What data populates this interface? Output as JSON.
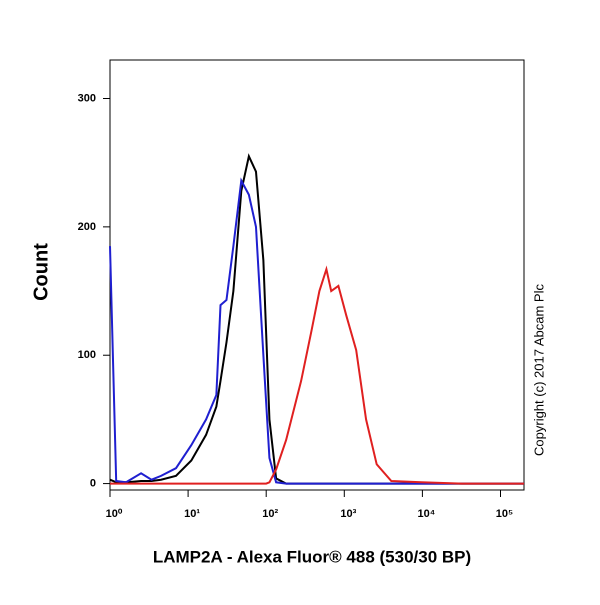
{
  "chart_data": {
    "type": "line",
    "xlabel": "LAMP2A - Alexa Fluor® 488 (530/30 BP)",
    "ylabel": "Count",
    "annotation": "Copyright (c) 2017 Abcam Plc",
    "xscale": "log",
    "xlim": [
      1,
      200000
    ],
    "ylim": [
      -5,
      330
    ],
    "xticks": [
      {
        "value": 1,
        "label": "10⁰"
      },
      {
        "value": 10,
        "label": "10¹"
      },
      {
        "value": 100,
        "label": "10²"
      },
      {
        "value": 1000,
        "label": "10³"
      },
      {
        "value": 10000,
        "label": "10⁴"
      },
      {
        "value": 100000,
        "label": "10⁵"
      }
    ],
    "yticks": [
      0,
      100,
      200,
      300
    ],
    "series": [
      {
        "color": "#000000",
        "x": [
          1,
          1.2,
          1.6,
          2.5,
          3.4,
          4.5,
          7,
          11,
          17,
          23,
          26,
          31,
          38,
          48,
          60,
          74,
          92,
          110,
          134,
          180,
          1000,
          200000
        ],
        "values": [
          3,
          1,
          1,
          2,
          2,
          3,
          6,
          18,
          38,
          60,
          80,
          110,
          150,
          228,
          255,
          243,
          174,
          50,
          4,
          0,
          0,
          0
        ]
      },
      {
        "color": "#1f1fd0",
        "x": [
          1,
          1.2,
          1.6,
          2.5,
          3.4,
          4.5,
          7,
          11,
          17,
          23,
          26,
          31,
          38,
          48,
          60,
          74,
          92,
          110,
          134,
          180,
          280,
          1000,
          200000
        ],
        "values": [
          185,
          2,
          1,
          8,
          3,
          6,
          12,
          30,
          50,
          69,
          139,
          143,
          185,
          236,
          225,
          200,
          100,
          20,
          1,
          0,
          0,
          0,
          0
        ]
      },
      {
        "color": "#e02020",
        "x": [
          1,
          100,
          110,
          134,
          180,
          280,
          380,
          480,
          590,
          680,
          840,
          1060,
          1420,
          1900,
          2600,
          4000,
          9700,
          32000,
          200000
        ],
        "values": [
          0,
          0,
          1,
          11,
          34,
          80,
          119,
          150,
          167,
          150,
          154,
          131,
          104,
          50,
          15,
          2,
          1,
          0,
          0
        ]
      }
    ]
  }
}
